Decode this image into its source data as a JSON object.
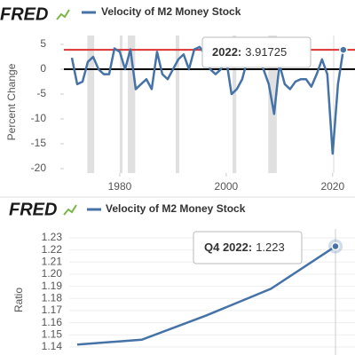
{
  "chart_data": [
    {
      "type": "line",
      "logo": "FRED",
      "y_label": "Percent Change",
      "x": [
        1971,
        1972,
        1973,
        1974,
        1975,
        1976,
        1977,
        1978,
        1979,
        1980,
        1981,
        1982,
        1983,
        1984,
        1985,
        1986,
        1987,
        1988,
        1989,
        1990,
        1991,
        1992,
        1993,
        1994,
        1995,
        1996,
        1997,
        1998,
        1999,
        2000,
        2001,
        2002,
        2003,
        2004,
        2005,
        2006,
        2007,
        2008,
        2009,
        2010,
        2011,
        2012,
        2013,
        2014,
        2015,
        2016,
        2017,
        2018,
        2019,
        2020,
        2021,
        2022
      ],
      "series": [
        {
          "name": "Velocity of M2 Money Stock",
          "color": "#4572a7",
          "values": [
            2.3,
            -3,
            -2.5,
            1.5,
            2.5,
            0,
            -1,
            -1,
            4.2,
            3.5,
            0,
            4,
            -4,
            -3,
            -2,
            -4,
            3.5,
            -1,
            -2,
            0,
            2,
            3,
            0,
            4,
            4.5,
            3,
            0,
            -1,
            0,
            2,
            -5,
            -4,
            -2,
            2,
            3,
            2,
            0,
            -3,
            -9,
            1,
            -3,
            -4,
            -2.5,
            -2,
            -2,
            -3.5,
            -1,
            2,
            -1,
            -17,
            -3,
            3.91725
          ]
        }
      ],
      "shaded_ranges": [
        [
          1973.9,
          1975.2
        ],
        [
          1980,
          1980.5
        ],
        [
          1981.5,
          1982.9
        ],
        [
          1990.5,
          1991.2
        ],
        [
          2001.2,
          2001.9
        ],
        [
          2007.9,
          2009.5
        ],
        [
          2020.1,
          2020.3
        ]
      ],
      "xlim": [
        1969.5,
        2024.2
      ],
      "xticks": [
        1980,
        2000,
        2020
      ],
      "ylim": [
        -20.9,
        6.8
      ],
      "yticks": [
        5,
        0,
        -5,
        -10,
        -15,
        -20
      ],
      "tooltip": {
        "label": "2022:"
      }
    },
    {
      "type": "line",
      "logo": "FRED",
      "y_label": "Ratio",
      "categories": [
        null,
        null,
        null,
        null,
        null
      ],
      "series": [
        {
          "name": "Velocity of M2 Money Stock",
          "color": "#4572a7",
          "values": [
            1.142,
            1.146,
            1.166,
            1.188,
            1.223
          ]
        }
      ],
      "ylim": [
        1.1334,
        1.2373
      ],
      "yticks": [
        1.14,
        1.15,
        1.16,
        1.17,
        1.18,
        1.19,
        {
          "value": 1.2,
          "label": "1.20"
        },
        1.21,
        1.22,
        1.23
      ],
      "tooltip": {
        "label": "Q4 2022:"
      }
    }
  ]
}
